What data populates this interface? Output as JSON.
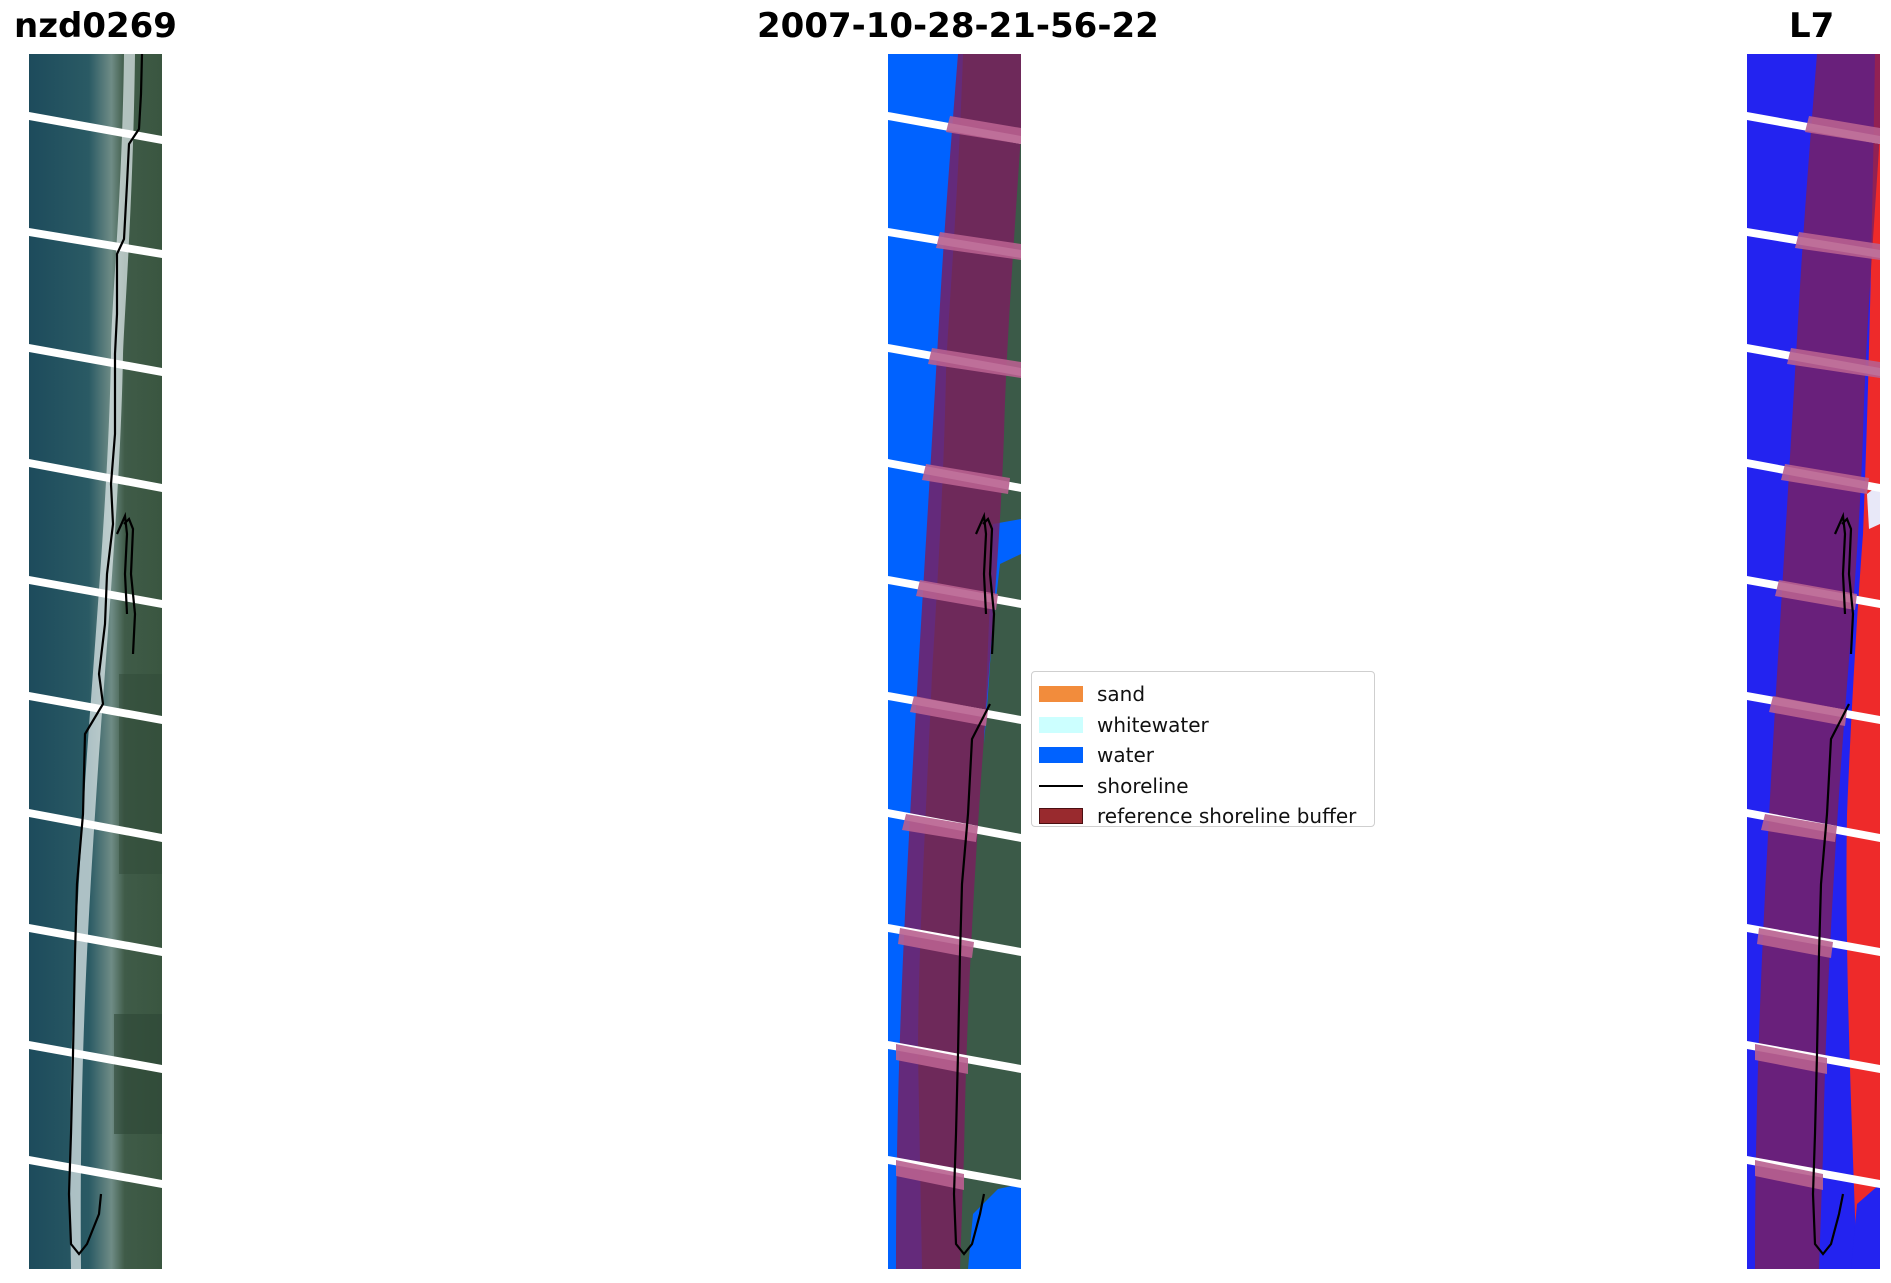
{
  "titles": {
    "site": "nzd0269",
    "date": "2007-10-28-21-56-22",
    "satellite": "L7"
  },
  "legend": {
    "items": [
      {
        "label": "sand",
        "color": "#f28c3c",
        "kind": "patch"
      },
      {
        "label": "whitewater",
        "color": "#ccffff",
        "kind": "patch"
      },
      {
        "label": "water",
        "color": "#0062ff",
        "kind": "patch"
      },
      {
        "label": "shoreline",
        "color": "#000000",
        "kind": "line"
      },
      {
        "label": "reference shoreline buffer",
        "color": "#992a2e",
        "kind": "patch-outlined"
      }
    ]
  },
  "colors": {
    "sea": "#1e4f5e",
    "land": "#3f5b4a",
    "surf": "#e8eef0",
    "water_class": "#0062ff",
    "buffer": "#7a1f5e",
    "mndwi_water": "#2323f0",
    "mndwi_land": "#ee2a2a"
  }
}
